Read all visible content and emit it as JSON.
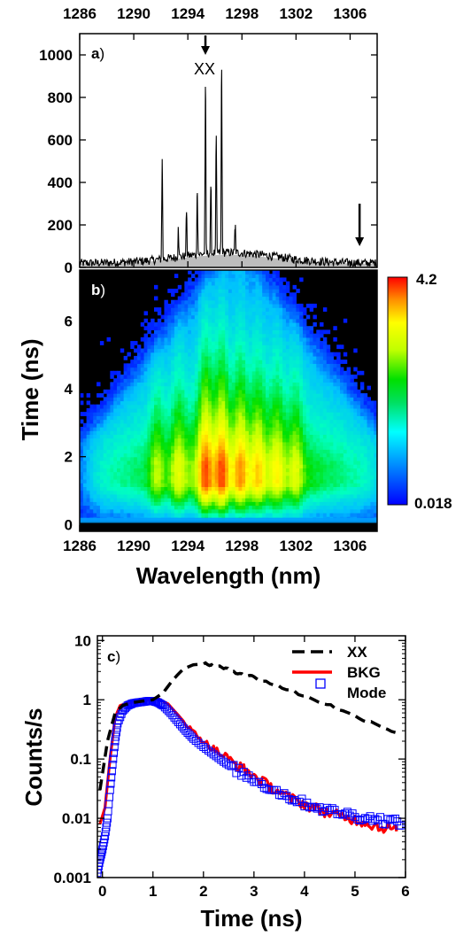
{
  "chart_data": [
    {
      "panel": "a",
      "type": "line",
      "tag_letter": "a",
      "tag_paren": ")",
      "xlim": [
        1286,
        1308
      ],
      "ylim": [
        0,
        1100
      ],
      "top_ticks": [
        "1286",
        "1290",
        "1294",
        "1298",
        "1302",
        "1306"
      ],
      "y_ticks": [
        "0",
        "200",
        "400",
        "600",
        "800",
        "1000"
      ],
      "annotation": "XX",
      "arrows": [
        1295.3,
        1306.7
      ],
      "peaks": [
        {
          "x": 1292.1,
          "y": 510
        },
        {
          "x": 1293.3,
          "y": 170
        },
        {
          "x": 1293.9,
          "y": 260
        },
        {
          "x": 1294.7,
          "y": 350
        },
        {
          "x": 1295.3,
          "y": 850
        },
        {
          "x": 1295.7,
          "y": 380
        },
        {
          "x": 1296.1,
          "y": 620
        },
        {
          "x": 1296.5,
          "y": 930
        },
        {
          "x": 1297.5,
          "y": 170
        }
      ],
      "background": {
        "baseline": 20,
        "max": 70,
        "center": 1297,
        "width": 5
      },
      "colors": {
        "line": "#000000",
        "fill": "#bdbdbd"
      }
    },
    {
      "panel": "b",
      "type": "heatmap",
      "tag_letter": "b",
      "tag_paren": ")",
      "xlim": [
        1286,
        1308
      ],
      "ylim": [
        -0.2,
        7.5
      ],
      "x_ticks": [
        "1286",
        "1290",
        "1294",
        "1298",
        "1302",
        "1306"
      ],
      "y_ticks": [
        "0",
        "2",
        "4",
        "6"
      ],
      "xlabel": "Wavelength (nm)",
      "ylabel": "Time (ns)",
      "colorbar": {
        "max": "4.2",
        "min": "0.018",
        "scale": "log"
      },
      "colors": [
        "#0000ff",
        "#00c0ff",
        "#00ffc0",
        "#00e000",
        "#c0ff00",
        "#ffff00",
        "#ffa000",
        "#ff3000"
      ]
    },
    {
      "panel": "c",
      "type": "line",
      "tag_letter": "c",
      "tag_paren": ")",
      "xlim": [
        -0.1,
        6.0
      ],
      "ylim": [
        0.001,
        12
      ],
      "y_scale": "log",
      "x_ticks": [
        "0",
        "1",
        "2",
        "3",
        "4",
        "5",
        "6"
      ],
      "y_ticks": [
        "0.001",
        "0.01",
        "0.1",
        "1",
        "10"
      ],
      "xlabel": "Time (ns)",
      "ylabel": "Counts/s",
      "series": [
        {
          "name": "XX",
          "style": "dashed",
          "color": "#000000",
          "x": [
            -0.05,
            0.1,
            0.25,
            0.4,
            0.6,
            0.8,
            1.0,
            1.2,
            1.4,
            1.6,
            1.8,
            2.0,
            2.2,
            2.4,
            2.6,
            2.8,
            3.0,
            3.4,
            3.8,
            4.2,
            4.6,
            5.0,
            5.4,
            5.8
          ],
          "y": [
            0.03,
            0.2,
            0.6,
            0.8,
            0.9,
            0.95,
            1.0,
            1.3,
            2.2,
            3.3,
            3.9,
            4.0,
            3.8,
            3.4,
            3.0,
            2.7,
            2.4,
            1.8,
            1.35,
            1.0,
            0.75,
            0.52,
            0.4,
            0.28
          ]
        },
        {
          "name": "BKG",
          "style": "solid",
          "color": "#ff0000",
          "x": [
            -0.05,
            0.05,
            0.15,
            0.25,
            0.35,
            0.5,
            0.7,
            0.9,
            1.1,
            1.3,
            1.5,
            1.7,
            1.9,
            2.1,
            2.3,
            2.5,
            2.7,
            2.9,
            3.1,
            3.3,
            3.5,
            3.7,
            3.9,
            4.1,
            4.3,
            4.5,
            4.7,
            4.9,
            5.1,
            5.3,
            5.5,
            5.7,
            5.85
          ],
          "y": [
            0.008,
            0.015,
            0.1,
            0.5,
            0.8,
            0.88,
            0.95,
            1.0,
            1.05,
            0.85,
            0.55,
            0.35,
            0.24,
            0.17,
            0.13,
            0.1,
            0.075,
            0.06,
            0.045,
            0.035,
            0.028,
            0.022,
            0.019,
            0.016,
            0.014,
            0.012,
            0.011,
            0.01,
            0.009,
            0.008,
            0.007,
            0.007,
            0.006
          ]
        },
        {
          "name": "Mode",
          "style": "markers",
          "color": "#0000ff",
          "x": [
            -0.1,
            -0.05,
            0.0,
            0.05,
            0.1,
            0.15,
            0.2,
            0.25,
            0.3,
            0.4,
            0.5,
            0.6,
            0.7,
            0.8,
            0.9,
            1.0,
            1.1,
            1.2,
            1.35,
            1.5,
            1.65,
            1.8,
            2.0,
            2.2,
            2.4,
            2.6,
            2.8,
            3.0,
            3.2,
            3.4,
            3.6,
            3.8,
            4.0,
            4.2,
            4.4,
            4.6,
            4.8,
            5.0,
            5.2,
            5.4,
            5.6,
            5.8,
            5.95
          ],
          "y": [
            0.0012,
            0.002,
            0.003,
            0.005,
            0.01,
            0.03,
            0.08,
            0.2,
            0.4,
            0.65,
            0.8,
            0.87,
            0.9,
            0.92,
            0.95,
            0.95,
            0.9,
            0.8,
            0.6,
            0.42,
            0.3,
            0.22,
            0.16,
            0.12,
            0.09,
            0.07,
            0.055,
            0.045,
            0.036,
            0.03,
            0.025,
            0.021,
            0.018,
            0.016,
            0.014,
            0.013,
            0.012,
            0.011,
            0.01,
            0.01,
            0.009,
            0.009,
            0.008
          ]
        }
      ]
    }
  ]
}
